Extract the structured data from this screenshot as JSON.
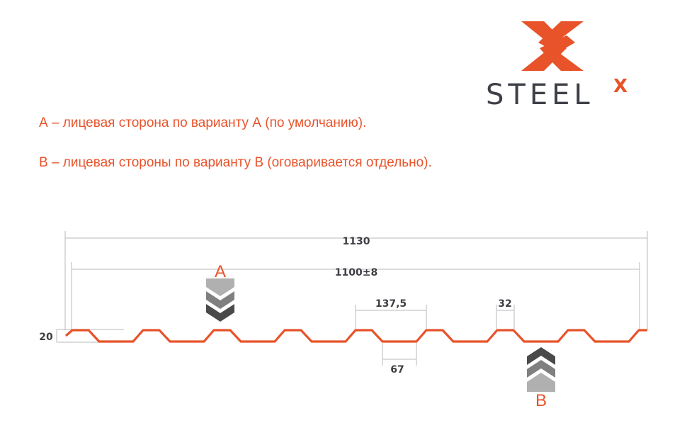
{
  "logo": {
    "text": "STEEL",
    "superscript": "X",
    "brand_color": "#e8532a",
    "text_color": "#3d4046"
  },
  "notes": [
    "А – лицевая сторона по варианту А (по умолчанию).",
    "В – лицевая стороны по варианту В (оговаривается отдельно)."
  ],
  "dimensions": {
    "overall_width": "1130",
    "useful_width": "1100±8",
    "pitch": "137,5",
    "crest_width": "32",
    "trough_width": "67",
    "height": "20"
  },
  "side_labels": {
    "a": "A",
    "b": "B"
  },
  "colors": {
    "profile": "#e8532a",
    "dimension_line": "#c8c8c8",
    "chevron_light": "#b0b0b0",
    "chevron_mid": "#808080",
    "chevron_dark": "#4a4a4a"
  }
}
